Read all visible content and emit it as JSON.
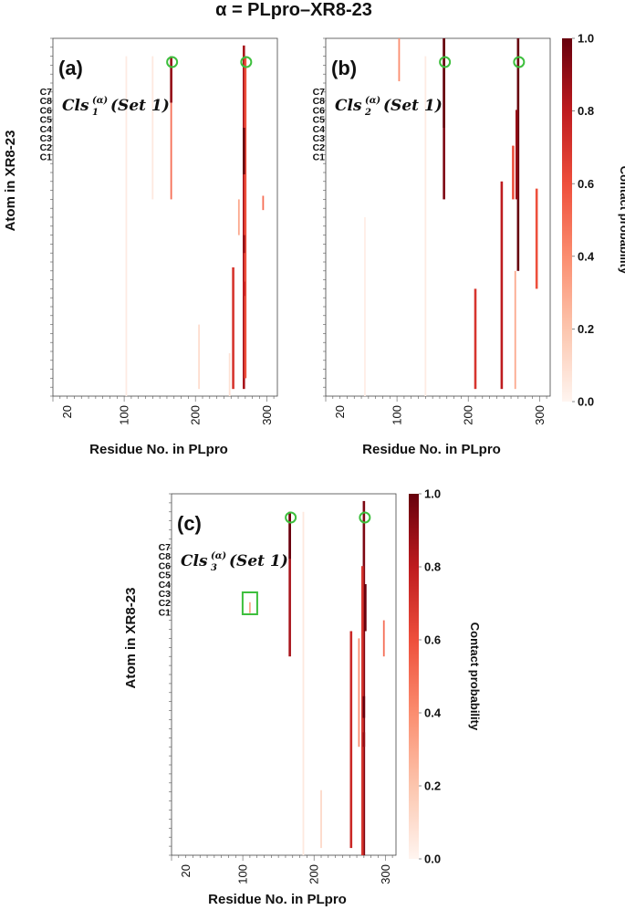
{
  "figure": {
    "title": "α = PLpro–XR8-23"
  },
  "chart_data": [
    {
      "type": "heatmap",
      "panel_label": "(a)",
      "cluster_label": {
        "base": "Cls",
        "sub": "1",
        "sup": "(α)",
        "suffix": "(Set 1)"
      },
      "xlabel": "Residue No. in PLpro",
      "ylabel": "Atom in XR8-23",
      "x_ticks": [
        20,
        100,
        200,
        300
      ],
      "xlim": [
        0,
        315
      ],
      "atom_labels": [
        "C7",
        "C8",
        "C6",
        "C5",
        "C4",
        "C3",
        "C2",
        "C1"
      ],
      "colorbar": {
        "label": "Contact probability",
        "ticks": [
          "1.0",
          "0.8",
          "0.6",
          "0.4",
          "0.2",
          "0.0"
        ],
        "range": [
          0,
          1
        ]
      },
      "highlight_residues": [
        166,
        270
      ],
      "contacts": [
        {
          "residue": 166,
          "y": [
            0.82,
            0.95
          ],
          "p": 0.9
        },
        {
          "residue": 166,
          "y": [
            0.55,
            0.82
          ],
          "p": 0.5
        },
        {
          "residue": 268,
          "y": [
            0.02,
            0.98
          ],
          "p": 0.85
        },
        {
          "residue": 270,
          "y": [
            0.05,
            0.95
          ],
          "p": 0.6
        },
        {
          "residue": 268,
          "y": [
            0.62,
            0.75
          ],
          "p": 1.0
        },
        {
          "residue": 268,
          "y": [
            0.4,
            0.45
          ],
          "p": 0.9
        },
        {
          "residue": 268,
          "y": [
            0.28,
            0.32
          ],
          "p": 0.8
        },
        {
          "residue": 253,
          "y": [
            0.02,
            0.36
          ],
          "p": 0.7
        },
        {
          "residue": 261,
          "y": [
            0.45,
            0.55
          ],
          "p": 0.3
        },
        {
          "residue": 295,
          "y": [
            0.52,
            0.56
          ],
          "p": 0.5
        },
        {
          "residue": 103,
          "y": [
            0.0,
            0.95
          ],
          "p": 0.04
        },
        {
          "residue": 140,
          "y": [
            0.55,
            0.95
          ],
          "p": 0.05
        },
        {
          "residue": 205,
          "y": [
            0.02,
            0.2
          ],
          "p": 0.1
        },
        {
          "residue": 248,
          "y": [
            0.0,
            0.12
          ],
          "p": 0.08
        }
      ]
    },
    {
      "type": "heatmap",
      "panel_label": "(b)",
      "cluster_label": {
        "base": "Cls",
        "sub": "2",
        "sup": "(α)",
        "suffix": "(Set 1)"
      },
      "xlabel": "Residue No. in PLpro",
      "ylabel": "",
      "x_ticks": [
        20,
        100,
        200,
        300
      ],
      "xlim": [
        0,
        315
      ],
      "atom_labels": [
        "C7",
        "C8",
        "C6",
        "C5",
        "C4",
        "C3",
        "C2",
        "C1"
      ],
      "colorbar": {
        "label": "Contact probability",
        "ticks": [
          "1.0",
          "0.8",
          "0.6",
          "0.4",
          "0.2",
          "0.0"
        ],
        "range": [
          0,
          1
        ]
      },
      "highlight_residues": [
        166,
        270
      ],
      "contacts": [
        {
          "residue": 166,
          "y": [
            0.55,
            1.0
          ],
          "p": 0.95
        },
        {
          "residue": 166,
          "y": [
            0.75,
            1.0
          ],
          "p": 1.0
        },
        {
          "residue": 103,
          "y": [
            0.88,
            1.0
          ],
          "p": 0.4
        },
        {
          "residue": 270,
          "y": [
            0.35,
            1.0
          ],
          "p": 1.0
        },
        {
          "residue": 268,
          "y": [
            0.55,
            0.8
          ],
          "p": 0.9
        },
        {
          "residue": 263,
          "y": [
            0.55,
            0.7
          ],
          "p": 0.6
        },
        {
          "residue": 247,
          "y": [
            0.02,
            0.6
          ],
          "p": 0.8
        },
        {
          "residue": 210,
          "y": [
            0.02,
            0.3
          ],
          "p": 0.7
        },
        {
          "residue": 296,
          "y": [
            0.3,
            0.58
          ],
          "p": 0.6
        },
        {
          "residue": 266,
          "y": [
            0.02,
            0.35
          ],
          "p": 0.3
        },
        {
          "residue": 140,
          "y": [
            0.0,
            0.95
          ],
          "p": 0.04
        },
        {
          "residue": 55,
          "y": [
            0.0,
            0.5
          ],
          "p": 0.03
        }
      ]
    },
    {
      "type": "heatmap",
      "panel_label": "(c)",
      "cluster_label": {
        "base": "Cls",
        "sub": "3",
        "sup": "(α)",
        "suffix": "(Set 1)"
      },
      "xlabel": "Residue No. in PLpro",
      "ylabel": "Atom in XR8-23",
      "x_ticks": [
        20,
        100,
        200,
        300
      ],
      "xlim": [
        0,
        315
      ],
      "atom_labels": [
        "C7",
        "C8",
        "C6",
        "C5",
        "C4",
        "C3",
        "C2",
        "C1"
      ],
      "colorbar": {
        "label": "Contact probability",
        "ticks": [
          "1.0",
          "0.8",
          "0.6",
          "0.4",
          "0.2",
          "0.0"
        ],
        "range": [
          0,
          1
        ]
      },
      "highlight_residues": [
        166,
        270
      ],
      "highlight_box_residue": 110,
      "contacts": [
        {
          "residue": 166,
          "y": [
            0.55,
            0.95
          ],
          "p": 0.85
        },
        {
          "residue": 166,
          "y": [
            0.82,
            0.95
          ],
          "p": 1.0
        },
        {
          "residue": 270,
          "y": [
            0.0,
            0.98
          ],
          "p": 0.95
        },
        {
          "residue": 268,
          "y": [
            0.0,
            0.8
          ],
          "p": 0.7
        },
        {
          "residue": 272,
          "y": [
            0.62,
            0.75
          ],
          "p": 1.0
        },
        {
          "residue": 270,
          "y": [
            0.38,
            0.44
          ],
          "p": 1.0
        },
        {
          "residue": 270,
          "y": [
            0.3,
            0.34
          ],
          "p": 0.9
        },
        {
          "residue": 252,
          "y": [
            0.02,
            0.62
          ],
          "p": 0.75
        },
        {
          "residue": 263,
          "y": [
            0.3,
            0.6
          ],
          "p": 0.4
        },
        {
          "residue": 298,
          "y": [
            0.55,
            0.65
          ],
          "p": 0.5
        },
        {
          "residue": 110,
          "y": [
            0.67,
            0.7
          ],
          "p": 0.3
        },
        {
          "residue": 185,
          "y": [
            0.0,
            0.95
          ],
          "p": 0.05
        },
        {
          "residue": 210,
          "y": [
            0.02,
            0.18
          ],
          "p": 0.12
        }
      ]
    }
  ]
}
